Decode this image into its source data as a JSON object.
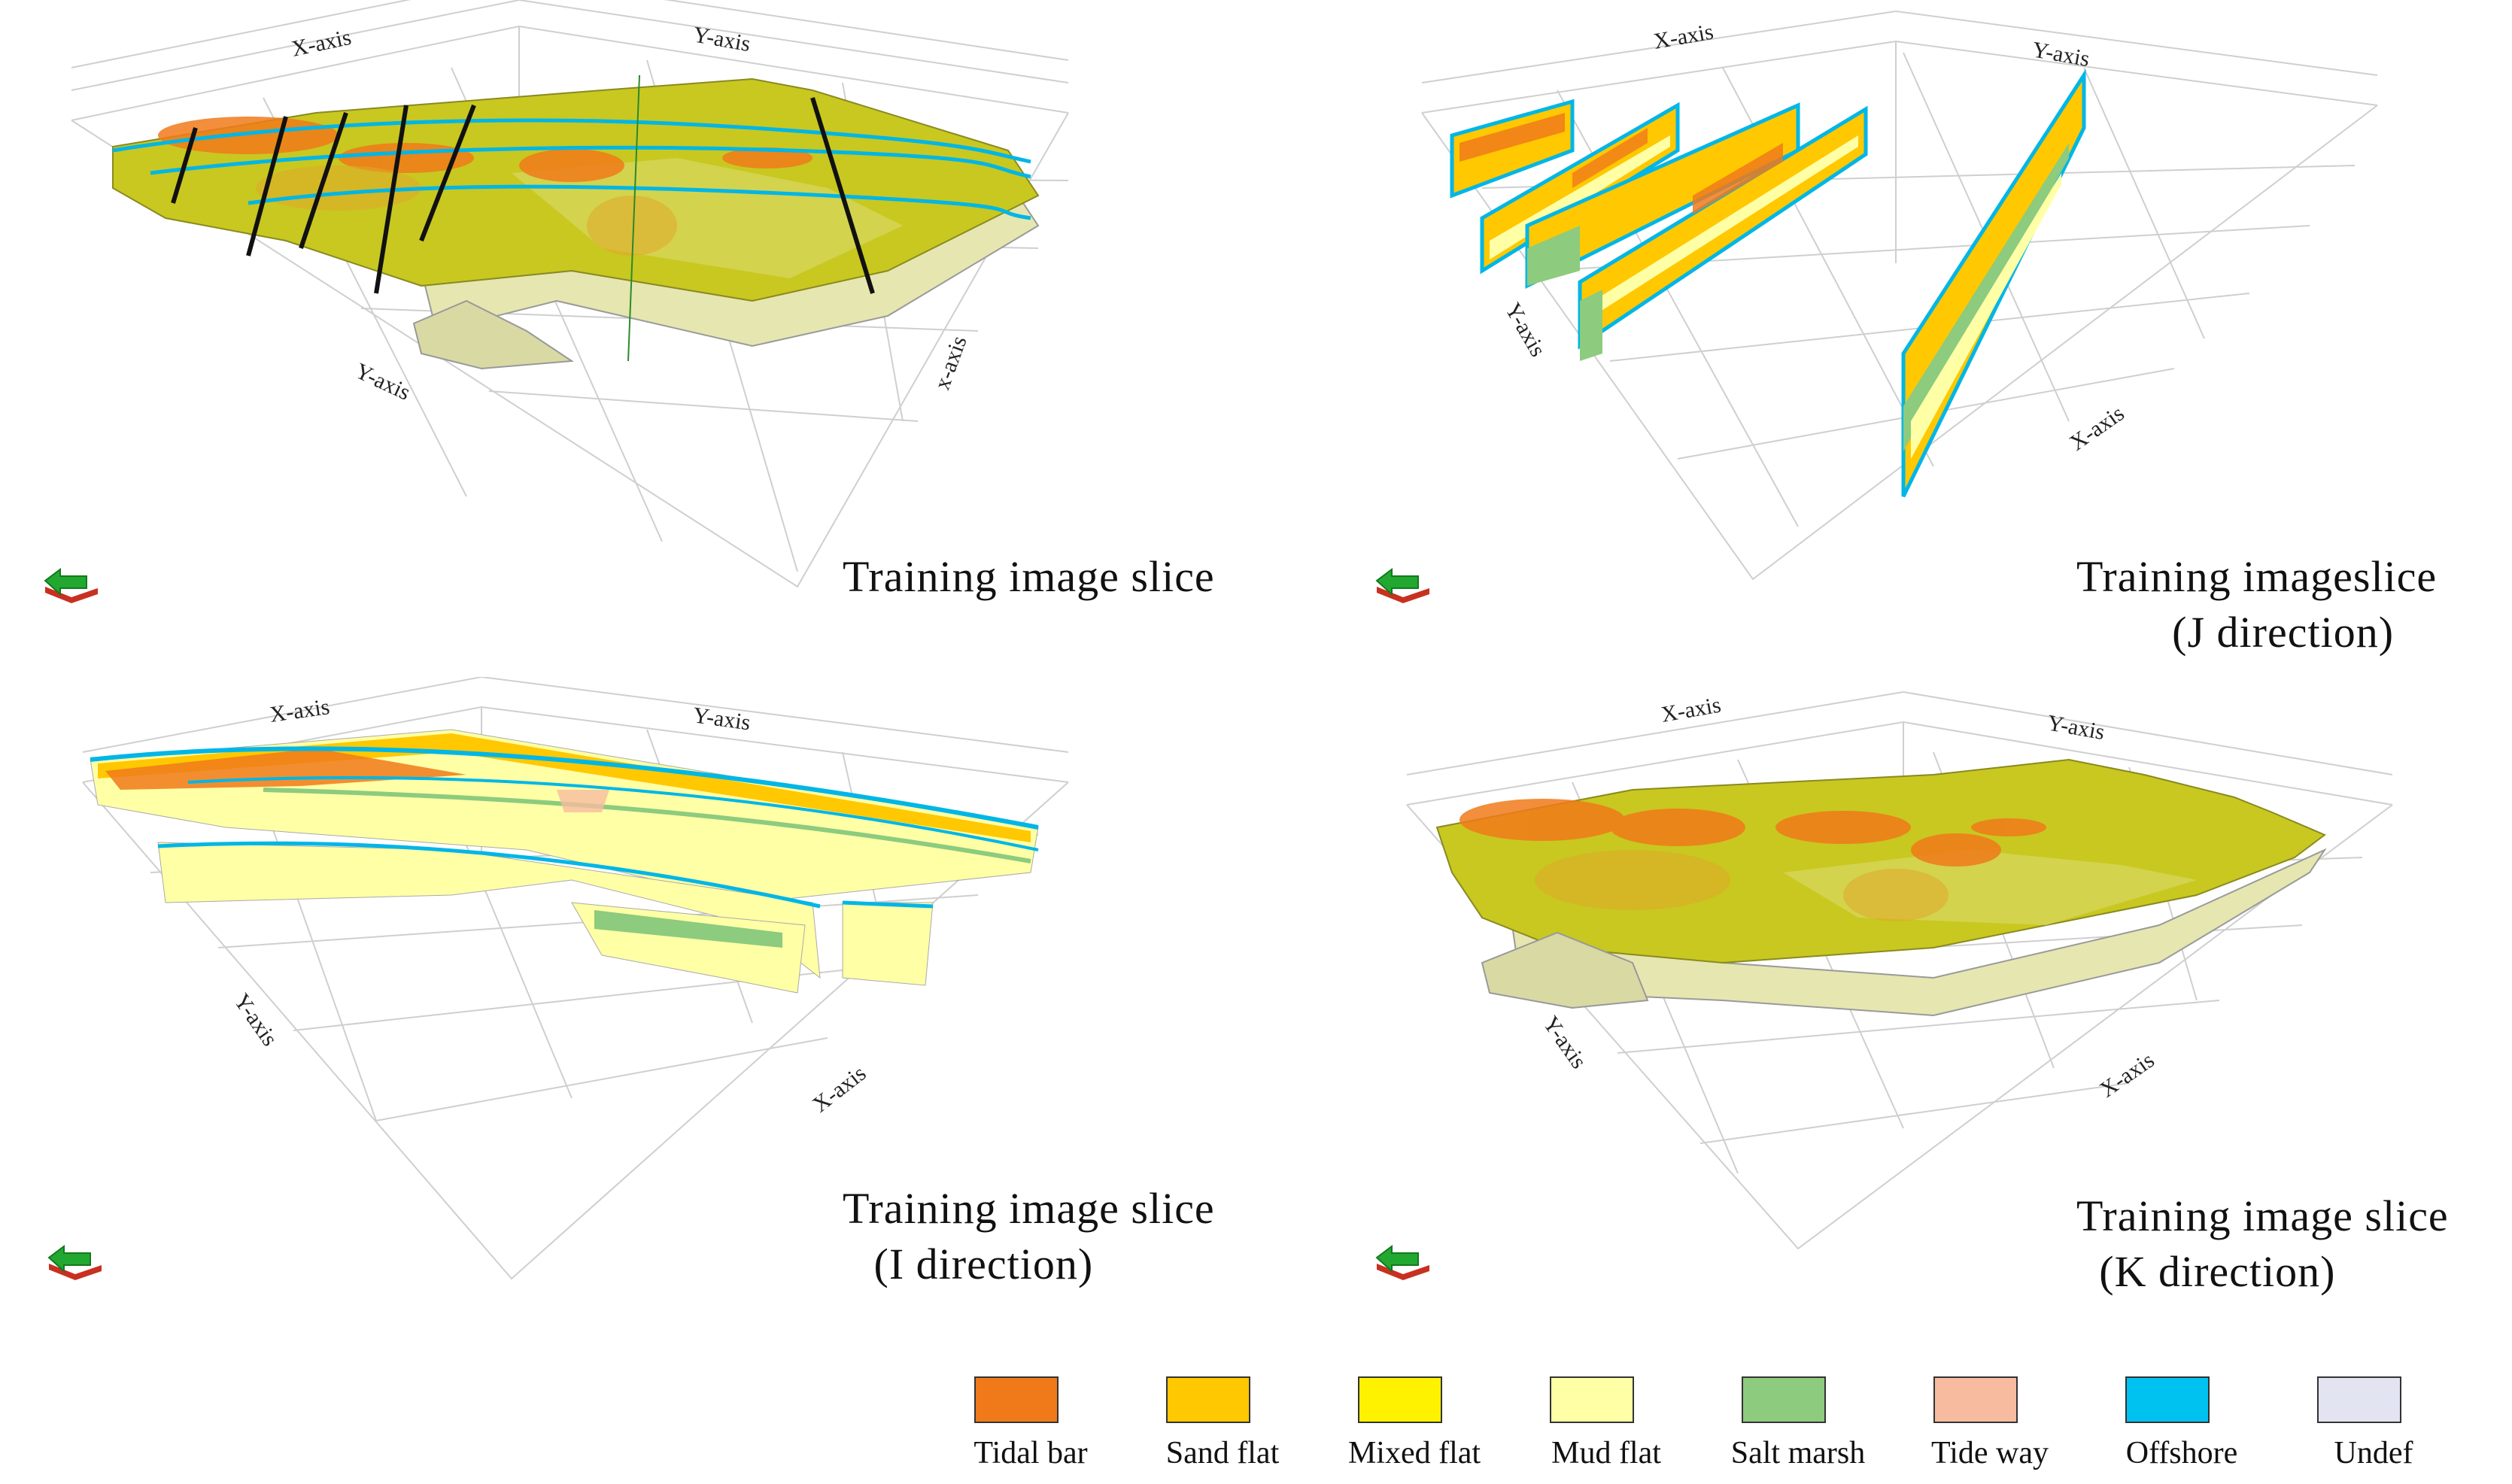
{
  "panels": [
    {
      "caption_lines": [
        "Training image slice",
        ""
      ],
      "axes": {
        "top_left": "X-axis",
        "top_right": "Y-axis",
        "bottom_left": "Y-axis",
        "bottom_right": "x-axis"
      }
    },
    {
      "caption_lines": [
        "Training imageslice",
        "(J direction)"
      ],
      "axes": {
        "top_left": "X-axis",
        "top_right": "Y-axis",
        "bottom_left": "Y-axis",
        "bottom_right": "X-axis"
      }
    },
    {
      "caption_lines": [
        "Training image slice",
        "(I direction)"
      ],
      "axes": {
        "top_left": "X-axis",
        "top_right": "Y-axis",
        "bottom_left": "Y-axis",
        "bottom_right": "X-axis"
      }
    },
    {
      "caption_lines": [
        "Training image slice",
        "(K direction)"
      ],
      "axes": {
        "top_left": "X-axis",
        "top_right": "Y-axis",
        "bottom_left": "Y-axis",
        "bottom_right": "X-axis"
      }
    }
  ],
  "legend": [
    {
      "label": "Tidal bar",
      "color": "#F07A1A"
    },
    {
      "label": "Sand  flat",
      "color": "#FFC800"
    },
    {
      "label": "Mixed  flat",
      "color": "#FFF200"
    },
    {
      "label": "Mud  flat",
      "color": "#FFFFA6"
    },
    {
      "label": "Salt  marsh",
      "color": "#8DCB7E"
    },
    {
      "label": "Tide way",
      "color": "#F7BBA0"
    },
    {
      "label": "Offshore",
      "color": "#00C2F0"
    },
    {
      "label": "Undef",
      "color": "#E2E4F2"
    }
  ],
  "colors": {
    "surface": "#C8C820",
    "surface_light": "#D6D65A",
    "tidal_bar": "#F07A1A",
    "offshore": "#00B6E6",
    "undef": "#B8B8C0",
    "grid": "#C8C8C8",
    "nav_arrow": "#22A830",
    "nav_base": "#C83020"
  }
}
